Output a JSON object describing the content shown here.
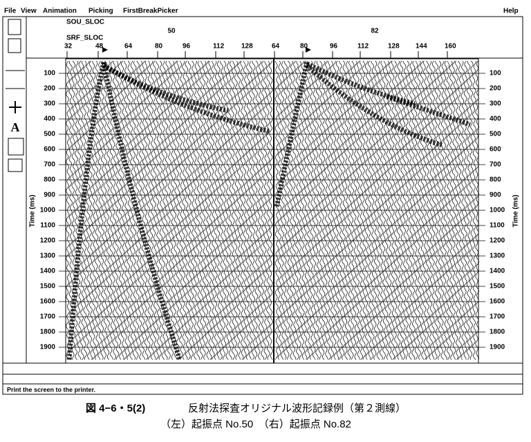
{
  "menu": {
    "items": [
      "File",
      "View",
      "Animation",
      "Picking",
      "FirstBreakPicker"
    ],
    "help": "Help"
  },
  "header": {
    "source_key": "SOU_SLOC",
    "receiver_key": "SRF_SLOC",
    "source_values": [
      "50",
      "82"
    ],
    "receiver_labels": [
      "32",
      "48",
      "64",
      "80",
      "96",
      "112",
      "128",
      "64",
      "80",
      "96",
      "112",
      "128",
      "144",
      "160"
    ]
  },
  "axis": {
    "label": "Time (ms)",
    "ticks": [
      "100",
      "200",
      "300",
      "400",
      "500",
      "600",
      "700",
      "800",
      "900",
      "1000",
      "1100",
      "1200",
      "1300",
      "1400",
      "1500",
      "1600",
      "1700",
      "1800",
      "1900"
    ]
  },
  "status": "Print the screen to the printer.",
  "caption": {
    "figure": "図 4−6・5(2)",
    "title": "反射法探査オリジナル波形記録例（第２測線）",
    "subtitle": "（左）起振点 No.50　（右）起振点 No.82"
  }
}
